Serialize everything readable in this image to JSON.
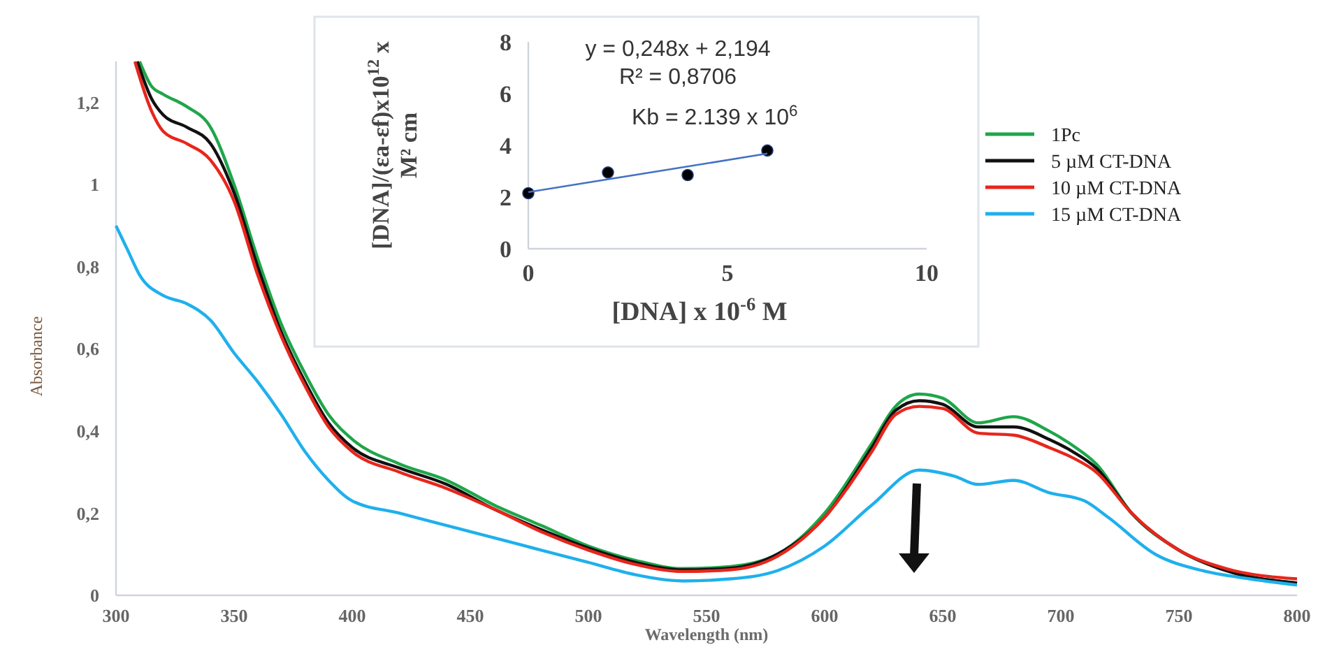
{
  "chart_data": [
    {
      "type": "line",
      "xlabel": "Wavelength (nm)",
      "ylabel": "Absorbance",
      "xlim": [
        300,
        800
      ],
      "xticks": [
        300,
        350,
        400,
        450,
        500,
        550,
        600,
        650,
        700,
        750,
        800
      ],
      "ylim": [
        0,
        1.3
      ],
      "yticks": [
        0,
        {
          "value": 0.2,
          "label": "0,2"
        },
        {
          "value": 0.4,
          "label": "0,4"
        },
        {
          "value": 0.6,
          "label": "0,6"
        },
        {
          "value": 0.8,
          "label": "0,8"
        },
        1,
        {
          "value": 1.2,
          "label": "1,2"
        }
      ],
      "grid": false,
      "legend": "top right",
      "line_style": "solid",
      "series": [
        {
          "name": "1Pc",
          "color": "#1fa64a",
          "x": [
            310,
            315,
            320,
            330,
            340,
            350,
            360,
            370,
            380,
            390,
            400,
            420,
            440,
            460,
            480,
            500,
            520,
            540,
            560,
            580,
            600,
            620,
            630,
            640,
            650,
            665,
            680,
            695,
            705,
            715,
            730,
            750,
            770,
            800
          ],
          "values": [
            1.3,
            1.24,
            1.22,
            1.19,
            1.14,
            1.0,
            0.82,
            0.66,
            0.54,
            0.44,
            0.38,
            0.32,
            0.28,
            0.22,
            0.17,
            0.12,
            0.085,
            0.065,
            0.07,
            0.1,
            0.2,
            0.37,
            0.46,
            0.49,
            0.48,
            0.42,
            0.435,
            0.4,
            0.365,
            0.32,
            0.2,
            0.11,
            0.06,
            0.03
          ]
        },
        {
          "name": "5 µM CT-DNA",
          "color": "#111111",
          "x": [
            309,
            315,
            320,
            330,
            340,
            350,
            360,
            370,
            380,
            390,
            400,
            420,
            440,
            460,
            480,
            500,
            520,
            540,
            560,
            580,
            600,
            620,
            630,
            640,
            650,
            665,
            680,
            695,
            705,
            715,
            730,
            750,
            770,
            800
          ],
          "values": [
            1.3,
            1.21,
            1.17,
            1.14,
            1.1,
            0.98,
            0.8,
            0.64,
            0.52,
            0.42,
            0.36,
            0.31,
            0.27,
            0.21,
            0.16,
            0.115,
            0.08,
            0.062,
            0.066,
            0.1,
            0.19,
            0.36,
            0.45,
            0.474,
            0.465,
            0.41,
            0.41,
            0.38,
            0.35,
            0.31,
            0.2,
            0.11,
            0.06,
            0.03
          ]
        },
        {
          "name": "10 µM CT-DNA",
          "color": "#e8261c",
          "x": [
            308,
            315,
            320,
            330,
            340,
            350,
            360,
            370,
            380,
            390,
            400,
            420,
            440,
            460,
            480,
            500,
            520,
            540,
            560,
            580,
            600,
            620,
            630,
            640,
            650,
            665,
            680,
            695,
            705,
            715,
            730,
            750,
            770,
            800
          ],
          "values": [
            1.3,
            1.18,
            1.13,
            1.1,
            1.06,
            0.96,
            0.78,
            0.63,
            0.51,
            0.41,
            0.35,
            0.3,
            0.26,
            0.21,
            0.155,
            0.11,
            0.075,
            0.058,
            0.062,
            0.095,
            0.19,
            0.35,
            0.44,
            0.46,
            0.455,
            0.395,
            0.39,
            0.36,
            0.335,
            0.3,
            0.2,
            0.11,
            0.065,
            0.04
          ]
        },
        {
          "name": "15 µM CT-DNA",
          "color": "#1fb0ec",
          "x": [
            300,
            305,
            310,
            320,
            330,
            340,
            350,
            360,
            370,
            380,
            390,
            400,
            420,
            440,
            460,
            480,
            500,
            520,
            540,
            560,
            580,
            600,
            620,
            640,
            655,
            665,
            680,
            695,
            710,
            720,
            740,
            760,
            780,
            800
          ],
          "values": [
            0.9,
            0.84,
            0.78,
            0.73,
            0.71,
            0.67,
            0.59,
            0.52,
            0.44,
            0.35,
            0.28,
            0.23,
            0.2,
            0.17,
            0.14,
            0.11,
            0.08,
            0.05,
            0.035,
            0.04,
            0.06,
            0.12,
            0.22,
            0.305,
            0.29,
            0.27,
            0.28,
            0.25,
            0.23,
            0.19,
            0.1,
            0.06,
            0.04,
            0.025
          ]
        }
      ]
    },
    {
      "type": "scatter",
      "xlabel": "[DNA] x 10$^{-6}$ M",
      "ylabel": "[DNA]/(εa-εf)x10$^{12}$ x M² cm",
      "xlim": [
        0,
        10
      ],
      "xticks": [
        0,
        5,
        10
      ],
      "ylim": [
        0,
        8
      ],
      "yticks": [
        0,
        2,
        4,
        6,
        8
      ],
      "grid": false,
      "annotations": [
        "y = 0,248x + 2,194",
        "R² = 0,8706",
        "Kb = 2.139 x 10$^{6}$"
      ],
      "series": [
        {
          "color": "#000000",
          "marker": "circle",
          "x": [
            0,
            2,
            4,
            6
          ],
          "values": [
            2.15,
            2.95,
            2.85,
            3.8
          ]
        },
        {
          "type": "line",
          "color": "#4472c4",
          "x": [
            0,
            6
          ],
          "values": [
            2.19,
            3.68
          ]
        }
      ]
    }
  ]
}
